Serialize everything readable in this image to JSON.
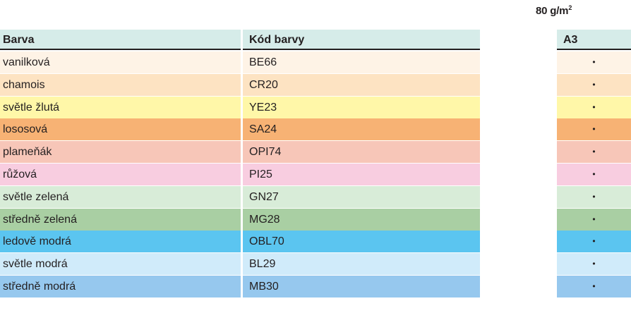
{
  "header": {
    "weight_value": "80 g/m",
    "weight_sup": "2"
  },
  "table": {
    "columns": [
      "Barva",
      "Kód barvy",
      "A3"
    ],
    "rows": [
      {
        "name": "vanilková",
        "code": "BE66",
        "a3": "•",
        "color": "#fef3e6"
      },
      {
        "name": "chamois",
        "code": "CR20",
        "a3": "•",
        "color": "#fde3c2"
      },
      {
        "name": "světle žlutá",
        "code": "YE23",
        "a3": "•",
        "color": "#fff7a8"
      },
      {
        "name": "lososová",
        "code": "SA24",
        "a3": "•",
        "color": "#f7b274"
      },
      {
        "name": "plameňák",
        "code": "OPI74",
        "a3": "•",
        "color": "#f7c6b8"
      },
      {
        "name": "růžová",
        "code": "PI25",
        "a3": "•",
        "color": "#f8cde0"
      },
      {
        "name": "světle zelená",
        "code": "GN27",
        "a3": "•",
        "color": "#d8ecd8"
      },
      {
        "name": "středně zelená",
        "code": "MG28",
        "a3": "•",
        "color": "#a9cfa3"
      },
      {
        "name": "ledově modrá",
        "code": "OBL70",
        "a3": "•",
        "color": "#5bc5f0"
      },
      {
        "name": "světle modrá",
        "code": "BL29",
        "a3": "•",
        "color": "#d0ebfa"
      },
      {
        "name": "středně modrá",
        "code": "MB30",
        "a3": "•",
        "color": "#96c8ee"
      }
    ]
  }
}
